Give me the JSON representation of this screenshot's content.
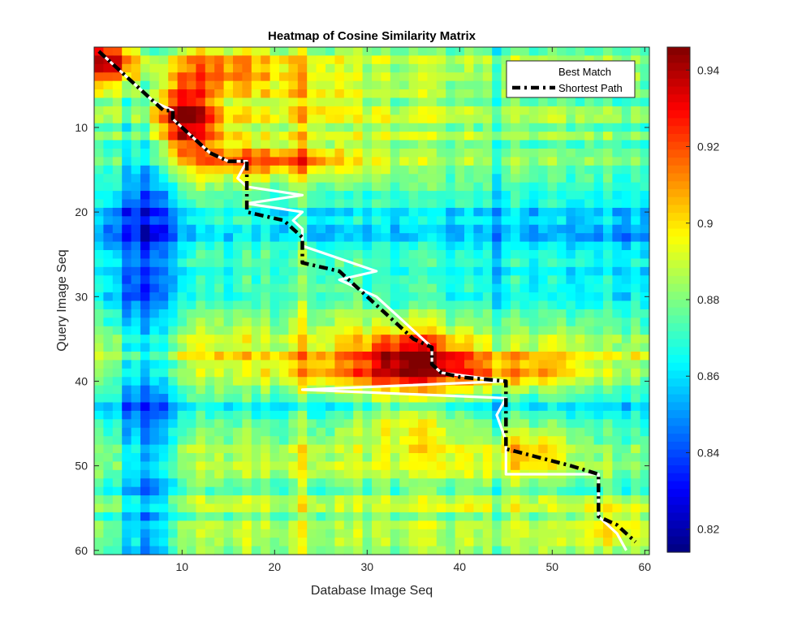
{
  "chart_data": {
    "type": "heatmap",
    "title": "Heatmap of Cosine Similarity Matrix",
    "xlabel": "Database Image Seq",
    "ylabel": "Query Image Seq",
    "xlim": [
      1,
      60
    ],
    "ylim": [
      1,
      60
    ],
    "x_ticks": [
      10,
      20,
      30,
      40,
      50,
      60
    ],
    "y_ticks": [
      10,
      20,
      30,
      40,
      50,
      60
    ],
    "colormap": "jet",
    "clim": [
      0.814,
      0.946
    ],
    "colorbar_ticks": [
      0.82,
      0.84,
      0.86,
      0.88,
      0.9,
      0.92,
      0.94
    ],
    "colorbar_labels": [
      "0.82",
      "0.84",
      "0.86",
      "0.88",
      "0.9",
      "0.92",
      "0.94"
    ],
    "legend": {
      "position": "top-right",
      "entries": [
        "Best Match",
        "Shortest Path"
      ]
    },
    "best_match_color": "#ffffff",
    "shortest_path_color": "#000000",
    "series": [
      {
        "name": "Best Match",
        "x": [
          1,
          3,
          4,
          5,
          6,
          7,
          9,
          9,
          10,
          11,
          12,
          13,
          15,
          17,
          16,
          17,
          23,
          17,
          23,
          22,
          23,
          23,
          31,
          27,
          29,
          31,
          34,
          37,
          37,
          38,
          45,
          23,
          45,
          44,
          45,
          45,
          45,
          55,
          55,
          56,
          57,
          58
        ],
        "y": [
          1,
          3,
          4,
          5,
          6,
          7,
          8,
          9,
          10,
          11,
          12,
          13,
          14,
          14,
          16,
          17,
          18,
          19,
          20,
          21,
          22,
          24,
          27,
          28,
          29,
          30,
          33,
          36,
          38,
          39,
          40,
          41,
          42,
          44,
          47,
          50,
          51,
          51,
          56,
          57,
          58,
          60
        ]
      },
      {
        "name": "Shortest Path",
        "x": [
          1,
          3,
          4,
          5,
          6,
          7,
          8,
          9,
          9,
          10,
          11,
          12,
          13,
          15,
          17,
          17,
          17,
          17,
          17,
          21,
          22,
          23,
          23,
          23,
          27,
          28,
          29,
          30,
          31,
          33,
          35,
          37,
          37,
          38,
          40,
          45,
          45,
          45,
          45,
          45,
          45,
          45,
          52,
          55,
          55,
          55,
          55,
          57,
          58,
          59
        ],
        "y": [
          1,
          3,
          4,
          5,
          6,
          7,
          8,
          8,
          9,
          10,
          11,
          12,
          13,
          14,
          14,
          15,
          16,
          18,
          20,
          21,
          22,
          23,
          24,
          26,
          27,
          28,
          29,
          30,
          31,
          33,
          35,
          36,
          38,
          39,
          39.5,
          40,
          41,
          43,
          45,
          47,
          48,
          48,
          50,
          51,
          53,
          55,
          56,
          57,
          58,
          59
        ]
      }
    ],
    "features": {
      "bands": [
        {
          "axis": "x",
          "center": 6,
          "width": 3.5,
          "amplitude": -0.028
        },
        {
          "axis": "x",
          "center": 23,
          "width": 1.5,
          "amplitude": 0.006
        },
        {
          "axis": "x",
          "center": 44,
          "width": 1.2,
          "amplitude": -0.012
        },
        {
          "axis": "x",
          "center": 56,
          "width": 4.0,
          "amplitude": -0.006
        },
        {
          "axis": "y",
          "center": 20,
          "width": 4.5,
          "amplitude": -0.02
        },
        {
          "axis": "y",
          "center": 25,
          "width": 3.5,
          "amplitude": -0.012
        },
        {
          "axis": "y",
          "center": 30,
          "width": 3.0,
          "amplitude": -0.008
        },
        {
          "axis": "y",
          "center": 37,
          "width": 2.5,
          "amplitude": 0.01
        },
        {
          "axis": "y",
          "center": 43,
          "width": 2.0,
          "amplitude": -0.016
        },
        {
          "axis": "y",
          "center": 47,
          "width": 4.0,
          "amplitude": 0.004
        },
        {
          "axis": "y",
          "center": 52,
          "width": 1.0,
          "amplitude": -0.01
        }
      ],
      "blobs": [
        {
          "x": 2,
          "y": 2,
          "sx": 4,
          "sy": 3,
          "amplitude": 0.055
        },
        {
          "x": 10,
          "y": 9,
          "sx": 4,
          "sy": 4,
          "amplitude": 0.06
        },
        {
          "x": 20,
          "y": 14,
          "sx": 9,
          "sy": 2,
          "amplitude": 0.035
        },
        {
          "x": 13,
          "y": 3,
          "sx": 7,
          "sy": 3,
          "amplitude": 0.025
        },
        {
          "x": 23,
          "y": 6,
          "sx": 6,
          "sy": 5,
          "amplitude": 0.015
        },
        {
          "x": 35,
          "y": 37,
          "sx": 5,
          "sy": 3,
          "amplitude": 0.04
        },
        {
          "x": 45,
          "y": 39,
          "sx": 10,
          "sy": 2,
          "amplitude": 0.025
        },
        {
          "x": 30,
          "y": 39,
          "sx": 12,
          "sy": 2,
          "amplitude": 0.02
        },
        {
          "x": 48,
          "y": 48,
          "sx": 4,
          "sy": 3,
          "amplitude": 0.02
        },
        {
          "x": 57,
          "y": 57,
          "sx": 4,
          "sy": 3,
          "amplitude": 0.02
        },
        {
          "x": 34,
          "y": 45,
          "sx": 5,
          "sy": 3,
          "amplitude": 0.012
        }
      ]
    }
  }
}
